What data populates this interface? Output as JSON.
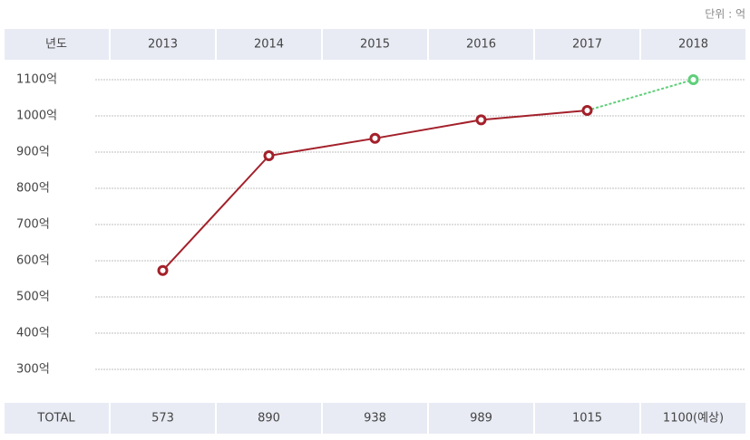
{
  "chart_data": {
    "type": "line",
    "unit_label": "단위 : 억",
    "category_label": "년도",
    "row_label": "TOTAL",
    "categories": [
      "2013",
      "2014",
      "2015",
      "2016",
      "2017",
      "2018"
    ],
    "values": [
      573,
      890,
      938,
      989,
      1015,
      1100
    ],
    "value_labels": [
      "573",
      "890",
      "938",
      "989",
      "1015",
      "1100(예상)"
    ],
    "forecast": [
      false,
      false,
      false,
      false,
      false,
      true
    ],
    "color": "#a3202a",
    "forecast_color": "#5fcf7a",
    "ylim": [
      250,
      1150
    ],
    "yticks": [
      {
        "value": 300,
        "label": "300억"
      },
      {
        "value": 400,
        "label": "400억"
      },
      {
        "value": 500,
        "label": "500억"
      },
      {
        "value": 600,
        "label": "600억"
      },
      {
        "value": 700,
        "label": "700억"
      },
      {
        "value": 800,
        "label": "800억"
      },
      {
        "value": 900,
        "label": "900억"
      },
      {
        "value": 1000,
        "label": "1000억"
      },
      {
        "value": 1100,
        "label": "1100억"
      }
    ],
    "grid": true
  }
}
